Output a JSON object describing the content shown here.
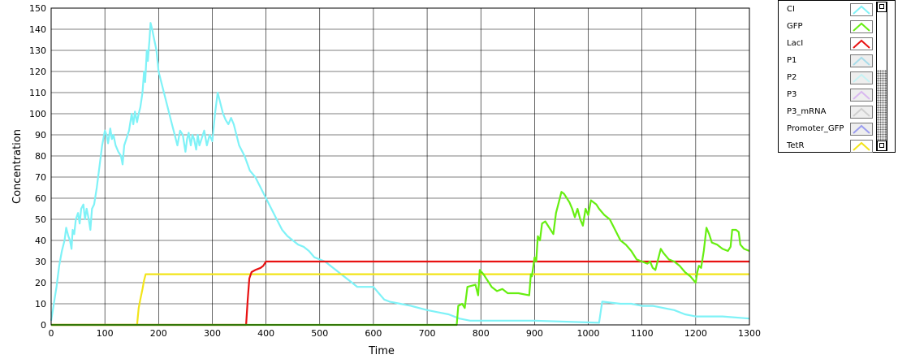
{
  "chart_data": {
    "type": "line",
    "xlabel": "Time",
    "ylabel": "Concentration",
    "xlim": [
      0,
      1300
    ],
    "ylim": [
      0,
      150
    ],
    "xticks": [
      0,
      100,
      200,
      300,
      400,
      500,
      600,
      700,
      800,
      900,
      1000,
      1100,
      1200,
      1300
    ],
    "yticks": [
      0,
      10,
      20,
      30,
      40,
      50,
      60,
      70,
      80,
      90,
      100,
      110,
      120,
      130,
      140,
      150
    ],
    "grid": true,
    "legend_position": "right",
    "series": [
      {
        "name": "CI",
        "color": "#7ff2f7",
        "points": [
          [
            0,
            2
          ],
          [
            5,
            10
          ],
          [
            10,
            18
          ],
          [
            15,
            28
          ],
          [
            20,
            35
          ],
          [
            25,
            40
          ],
          [
            28,
            46
          ],
          [
            32,
            42
          ],
          [
            35,
            40
          ],
          [
            38,
            36
          ],
          [
            40,
            45
          ],
          [
            43,
            43
          ],
          [
            46,
            50
          ],
          [
            50,
            53
          ],
          [
            53,
            48
          ],
          [
            56,
            55
          ],
          [
            60,
            57
          ],
          [
            63,
            50
          ],
          [
            66,
            55
          ],
          [
            70,
            50
          ],
          [
            73,
            45
          ],
          [
            76,
            55
          ],
          [
            80,
            57
          ],
          [
            85,
            65
          ],
          [
            90,
            75
          ],
          [
            95,
            85
          ],
          [
            100,
            92
          ],
          [
            103,
            90
          ],
          [
            106,
            86
          ],
          [
            110,
            93
          ],
          [
            113,
            88
          ],
          [
            116,
            90
          ],
          [
            120,
            85
          ],
          [
            125,
            82
          ],
          [
            130,
            80
          ],
          [
            133,
            76
          ],
          [
            136,
            85
          ],
          [
            140,
            88
          ],
          [
            145,
            92
          ],
          [
            150,
            100
          ],
          [
            153,
            95
          ],
          [
            156,
            101
          ],
          [
            160,
            96
          ],
          [
            163,
            100
          ],
          [
            166,
            103
          ],
          [
            170,
            110
          ],
          [
            173,
            120
          ],
          [
            175,
            115
          ],
          [
            178,
            130
          ],
          [
            180,
            125
          ],
          [
            183,
            135
          ],
          [
            185,
            143
          ],
          [
            188,
            140
          ],
          [
            192,
            135
          ],
          [
            196,
            130
          ],
          [
            200,
            120
          ],
          [
            205,
            115
          ],
          [
            210,
            110
          ],
          [
            215,
            105
          ],
          [
            220,
            100
          ],
          [
            225,
            95
          ],
          [
            230,
            90
          ],
          [
            235,
            85
          ],
          [
            240,
            92
          ],
          [
            245,
            90
          ],
          [
            250,
            82
          ],
          [
            253,
            88
          ],
          [
            256,
            91
          ],
          [
            260,
            85
          ],
          [
            263,
            90
          ],
          [
            266,
            88
          ],
          [
            270,
            83
          ],
          [
            273,
            90
          ],
          [
            276,
            85
          ],
          [
            280,
            88
          ],
          [
            285,
            92
          ],
          [
            290,
            85
          ],
          [
            295,
            90
          ],
          [
            300,
            87
          ],
          [
            305,
            100
          ],
          [
            310,
            110
          ],
          [
            315,
            105
          ],
          [
            320,
            100
          ],
          [
            325,
            97
          ],
          [
            330,
            95
          ],
          [
            335,
            98
          ],
          [
            340,
            95
          ],
          [
            345,
            90
          ],
          [
            350,
            85
          ],
          [
            360,
            80
          ],
          [
            370,
            73
          ],
          [
            380,
            70
          ],
          [
            390,
            65
          ],
          [
            400,
            60
          ],
          [
            410,
            55
          ],
          [
            420,
            50
          ],
          [
            430,
            45
          ],
          [
            440,
            42
          ],
          [
            450,
            40
          ],
          [
            460,
            38
          ],
          [
            470,
            37
          ],
          [
            480,
            35
          ],
          [
            490,
            32
          ],
          [
            500,
            31
          ],
          [
            510,
            30
          ],
          [
            520,
            28
          ],
          [
            530,
            26
          ],
          [
            540,
            24
          ],
          [
            550,
            22
          ],
          [
            560,
            20
          ],
          [
            570,
            18
          ],
          [
            600,
            18
          ],
          [
            610,
            15
          ],
          [
            620,
            12
          ],
          [
            630,
            11
          ],
          [
            650,
            10
          ],
          [
            670,
            9
          ],
          [
            700,
            7
          ],
          [
            720,
            6
          ],
          [
            740,
            5
          ],
          [
            760,
            3
          ],
          [
            780,
            2
          ],
          [
            900,
            2
          ],
          [
            1020,
            1
          ],
          [
            1026,
            11
          ],
          [
            1060,
            10
          ],
          [
            1080,
            10
          ],
          [
            1100,
            9
          ],
          [
            1120,
            9
          ],
          [
            1140,
            8
          ],
          [
            1160,
            7
          ],
          [
            1180,
            5
          ],
          [
            1200,
            4
          ],
          [
            1250,
            4
          ],
          [
            1300,
            3
          ]
        ]
      },
      {
        "name": "GFP",
        "color": "#66ee11",
        "points": [
          [
            0,
            0
          ],
          [
            755,
            0
          ],
          [
            758,
            9
          ],
          [
            765,
            10
          ],
          [
            770,
            8
          ],
          [
            775,
            18
          ],
          [
            790,
            19
          ],
          [
            795,
            14
          ],
          [
            798,
            26
          ],
          [
            805,
            24
          ],
          [
            810,
            22
          ],
          [
            815,
            20
          ],
          [
            820,
            18
          ],
          [
            830,
            16
          ],
          [
            840,
            17
          ],
          [
            850,
            15
          ],
          [
            870,
            15
          ],
          [
            890,
            14
          ],
          [
            893,
            24
          ],
          [
            895,
            23
          ],
          [
            900,
            32
          ],
          [
            903,
            30
          ],
          [
            906,
            42
          ],
          [
            910,
            40
          ],
          [
            914,
            48
          ],
          [
            920,
            49
          ],
          [
            930,
            45
          ],
          [
            935,
            43
          ],
          [
            940,
            53
          ],
          [
            945,
            58
          ],
          [
            950,
            63
          ],
          [
            955,
            62
          ],
          [
            960,
            60
          ],
          [
            965,
            58
          ],
          [
            970,
            55
          ],
          [
            975,
            51
          ],
          [
            980,
            55
          ],
          [
            985,
            50
          ],
          [
            990,
            47
          ],
          [
            995,
            55
          ],
          [
            1000,
            52
          ],
          [
            1005,
            59
          ],
          [
            1010,
            58
          ],
          [
            1015,
            57
          ],
          [
            1020,
            55
          ],
          [
            1030,
            52
          ],
          [
            1040,
            50
          ],
          [
            1050,
            45
          ],
          [
            1060,
            40
          ],
          [
            1070,
            38
          ],
          [
            1080,
            35
          ],
          [
            1090,
            31
          ],
          [
            1100,
            30
          ],
          [
            1110,
            29
          ],
          [
            1115,
            30
          ],
          [
            1120,
            27
          ],
          [
            1125,
            26
          ],
          [
            1130,
            31
          ],
          [
            1135,
            36
          ],
          [
            1140,
            34
          ],
          [
            1150,
            31
          ],
          [
            1160,
            30
          ],
          [
            1170,
            28
          ],
          [
            1180,
            25
          ],
          [
            1190,
            23
          ],
          [
            1200,
            20
          ],
          [
            1203,
            25
          ],
          [
            1206,
            28
          ],
          [
            1210,
            27
          ],
          [
            1215,
            35
          ],
          [
            1220,
            46
          ],
          [
            1225,
            43
          ],
          [
            1230,
            39
          ],
          [
            1240,
            38
          ],
          [
            1250,
            36
          ],
          [
            1260,
            35
          ],
          [
            1265,
            37
          ],
          [
            1268,
            45
          ],
          [
            1275,
            45
          ],
          [
            1280,
            44
          ],
          [
            1283,
            38
          ],
          [
            1290,
            36
          ],
          [
            1300,
            35
          ]
        ]
      },
      {
        "name": "LacI",
        "color": "#e81212",
        "points": [
          [
            0,
            0
          ],
          [
            363,
            0
          ],
          [
            366,
            12
          ],
          [
            369,
            22
          ],
          [
            373,
            25
          ],
          [
            380,
            26
          ],
          [
            390,
            27
          ],
          [
            395,
            28
          ],
          [
            400,
            30
          ],
          [
            1300,
            30
          ]
        ]
      },
      {
        "name": "P1",
        "color": "#a8dcea",
        "points": []
      },
      {
        "name": "P2",
        "color": "#c6f2f4",
        "points": []
      },
      {
        "name": "P3",
        "color": "#d9b8f0",
        "points": []
      },
      {
        "name": "P3_mRNA",
        "color": "#cfcfcf",
        "points": []
      },
      {
        "name": "Promoter_GFP",
        "color": "#9b9df0",
        "points": []
      },
      {
        "name": "TetR",
        "color": "#f2e41a",
        "points": [
          [
            0,
            0
          ],
          [
            160,
            0
          ],
          [
            163,
            8
          ],
          [
            166,
            12
          ],
          [
            170,
            17
          ],
          [
            173,
            21
          ],
          [
            176,
            24
          ],
          [
            1300,
            24
          ]
        ]
      }
    ]
  }
}
